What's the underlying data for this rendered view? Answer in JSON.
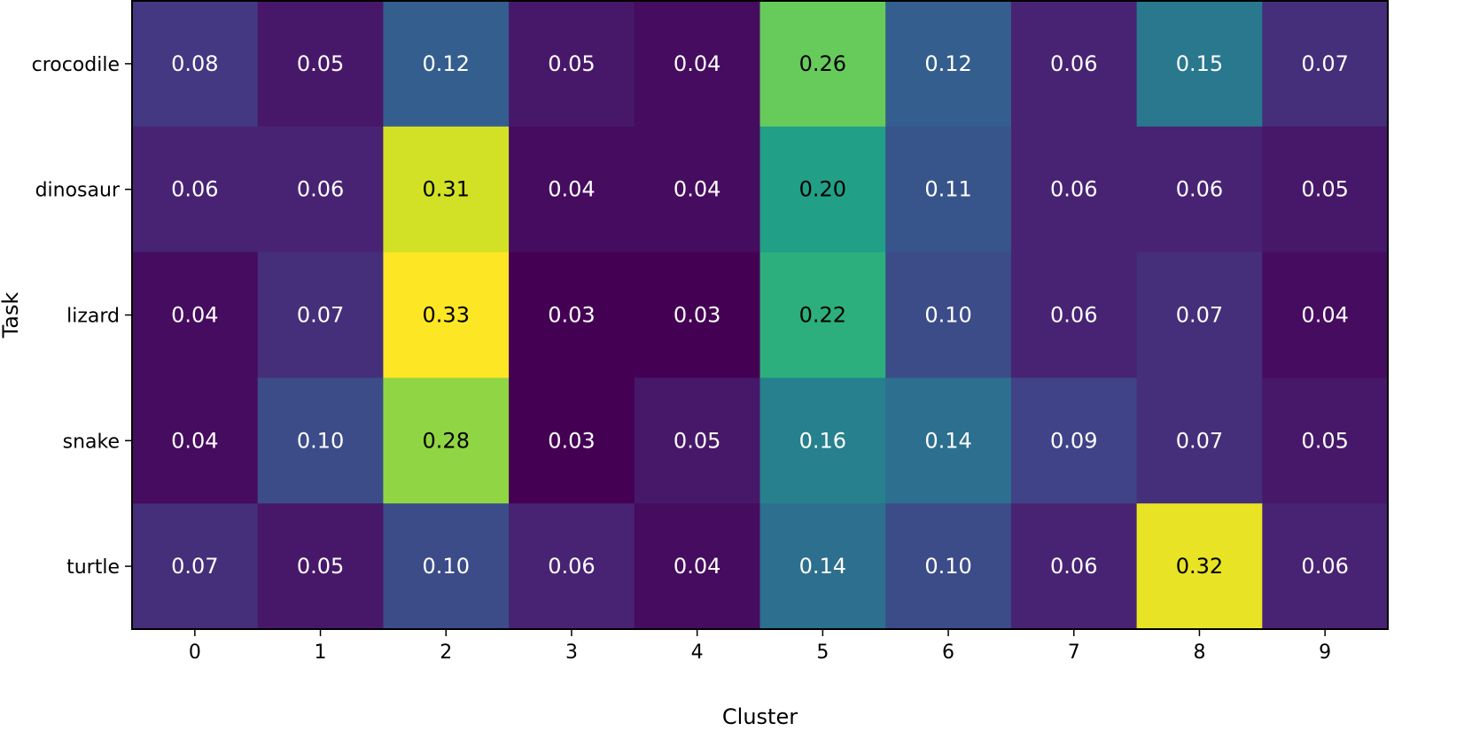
{
  "chart_data": {
    "type": "heatmap",
    "title": "",
    "xlabel": "Cluster",
    "ylabel": "Task",
    "x_categories": [
      "0",
      "1",
      "2",
      "3",
      "4",
      "5",
      "6",
      "7",
      "8",
      "9"
    ],
    "y_categories": [
      "crocodile",
      "dinosaur",
      "lizard",
      "snake",
      "turtle"
    ],
    "values": [
      [
        0.08,
        0.05,
        0.12,
        0.05,
        0.04,
        0.26,
        0.12,
        0.06,
        0.15,
        0.07
      ],
      [
        0.06,
        0.06,
        0.31,
        0.04,
        0.04,
        0.2,
        0.11,
        0.06,
        0.06,
        0.05
      ],
      [
        0.04,
        0.07,
        0.33,
        0.03,
        0.03,
        0.22,
        0.1,
        0.06,
        0.07,
        0.04
      ],
      [
        0.04,
        0.1,
        0.28,
        0.03,
        0.05,
        0.16,
        0.14,
        0.09,
        0.07,
        0.05
      ],
      [
        0.07,
        0.05,
        0.1,
        0.06,
        0.04,
        0.14,
        0.1,
        0.06,
        0.32,
        0.06
      ]
    ],
    "value_labels": [
      [
        "0.08",
        "0.05",
        "0.12",
        "0.05",
        "0.04",
        "0.26",
        "0.12",
        "0.06",
        "0.15",
        "0.07"
      ],
      [
        "0.06",
        "0.06",
        "0.31",
        "0.04",
        "0.04",
        "0.20",
        "0.11",
        "0.06",
        "0.06",
        "0.05"
      ],
      [
        "0.04",
        "0.07",
        "0.33",
        "0.03",
        "0.03",
        "0.22",
        "0.10",
        "0.06",
        "0.07",
        "0.04"
      ],
      [
        "0.04",
        "0.10",
        "0.28",
        "0.03",
        "0.05",
        "0.16",
        "0.14",
        "0.09",
        "0.07",
        "0.05"
      ],
      [
        "0.07",
        "0.05",
        "0.10",
        "0.06",
        "0.04",
        "0.14",
        "0.10",
        "0.06",
        "0.32",
        "0.06"
      ]
    ],
    "colormap": "viridis",
    "colorbar": false,
    "grid": false
  }
}
